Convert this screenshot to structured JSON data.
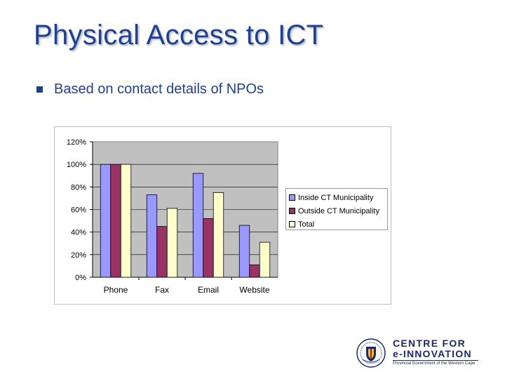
{
  "slide": {
    "title": "Physical Access to ICT",
    "bullet": "Based on contact details of NPOs"
  },
  "chart_data": {
    "type": "bar",
    "categories": [
      "Phone",
      "Fax",
      "Email",
      "Website"
    ],
    "series": [
      {
        "name": "Inside CT Municipality",
        "color": "#9999ff",
        "values": [
          100,
          73,
          92,
          46
        ]
      },
      {
        "name": "Outside CT Municipality",
        "color": "#993366",
        "values": [
          100,
          45,
          52,
          11
        ]
      },
      {
        "name": "Total",
        "color": "#ffffcc",
        "values": [
          100,
          61,
          75,
          31
        ]
      }
    ],
    "ylim": [
      0,
      120
    ],
    "yticks": [
      "0%",
      "20%",
      "40%",
      "60%",
      "80%",
      "100%",
      "120%"
    ],
    "ytick_values": [
      0,
      20,
      40,
      60,
      80,
      100,
      120
    ],
    "plot_background": "#c0c0c0",
    "gridlines": true,
    "legend_position": "right"
  },
  "logo": {
    "line1": "CENTRE FOR",
    "line2": "e-INNOVATION",
    "line3": "Provincial Government of the Western Cape"
  }
}
